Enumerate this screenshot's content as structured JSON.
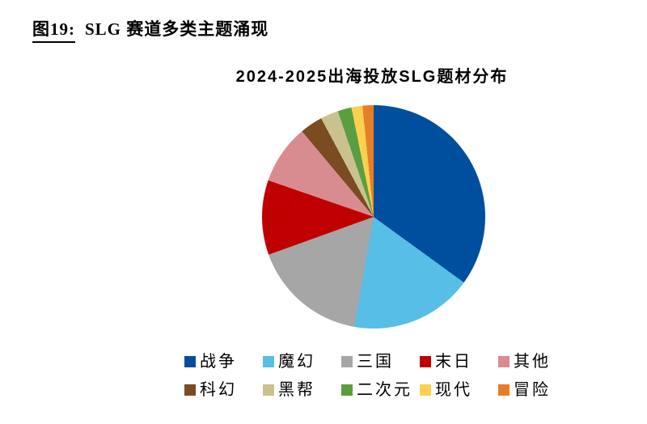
{
  "caption": {
    "label": "图19:",
    "title": "SLG 赛道多类主题涌现"
  },
  "chart_data": {
    "type": "pie",
    "title": "2024-2025出海投放SLG题材分布",
    "unit": "percent_estimated_from_arc_angles",
    "start_angle_deg": 0,
    "direction": "clockwise",
    "legend_position": "bottom",
    "legend_rows": 2,
    "slices": [
      {
        "label": "战争",
        "value": 35.0,
        "color": "#004F9E"
      },
      {
        "label": "魔幻",
        "value": 17.8,
        "color": "#57BEE6"
      },
      {
        "label": "三国",
        "value": 16.7,
        "color": "#A6A6A6"
      },
      {
        "label": "末日",
        "value": 10.8,
        "color": "#C00000"
      },
      {
        "label": "其他",
        "value": 8.6,
        "color": "#D98C90"
      },
      {
        "label": "科幻",
        "value": 3.3,
        "color": "#7B4B21"
      },
      {
        "label": "黑帮",
        "value": 2.6,
        "color": "#C9C28F"
      },
      {
        "label": "二次元",
        "value": 2.0,
        "color": "#5B9E41"
      },
      {
        "label": "现代",
        "value": 1.6,
        "color": "#FDD14F"
      },
      {
        "label": "冒险",
        "value": 1.6,
        "color": "#E87D28"
      }
    ]
  }
}
